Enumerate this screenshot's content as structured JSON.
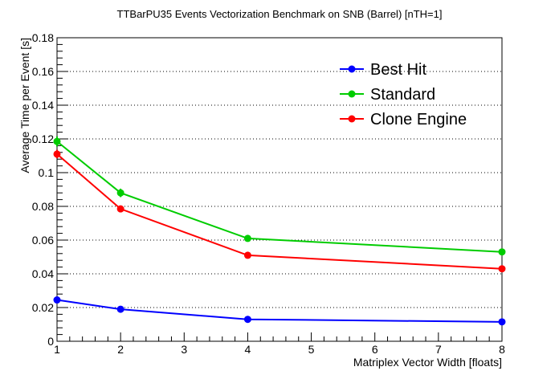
{
  "chart_data": {
    "type": "line",
    "title": "TTBarPU35 Events Vectorization Benchmark on SNB (Barrel) [nTH=1]",
    "xlabel": "Matriplex Vector Width [floats]",
    "ylabel": "Average Time per Event [s]",
    "xlim": [
      1,
      8
    ],
    "ylim": [
      0,
      0.18
    ],
    "x_ticks": [
      "1",
      "2",
      "3",
      "4",
      "5",
      "6",
      "7",
      "8"
    ],
    "y_ticks": [
      "0",
      "0.02",
      "0.04",
      "0.06",
      "0.08",
      "0.1",
      "0.12",
      "0.14",
      "0.16",
      "0.18"
    ],
    "grid": "horizontal dotted",
    "legend_position": "top-right",
    "x": [
      1,
      2,
      4,
      8
    ],
    "series": [
      {
        "name": "Best Hit",
        "color": "#0000ff",
        "values": [
          0.0245,
          0.019,
          0.013,
          0.0115
        ],
        "errors": [
          0.0008,
          0.0006,
          0.0005,
          0.0004
        ]
      },
      {
        "name": "Standard",
        "color": "#00cc00",
        "values": [
          0.1185,
          0.088,
          0.061,
          0.053
        ],
        "errors": [
          0.003,
          0.0025,
          0.0015,
          0.0015
        ]
      },
      {
        "name": "Clone Engine",
        "color": "#ff0000",
        "values": [
          0.111,
          0.0785,
          0.051,
          0.043
        ],
        "errors": [
          0.0025,
          0.002,
          0.001,
          0.001
        ]
      }
    ]
  }
}
